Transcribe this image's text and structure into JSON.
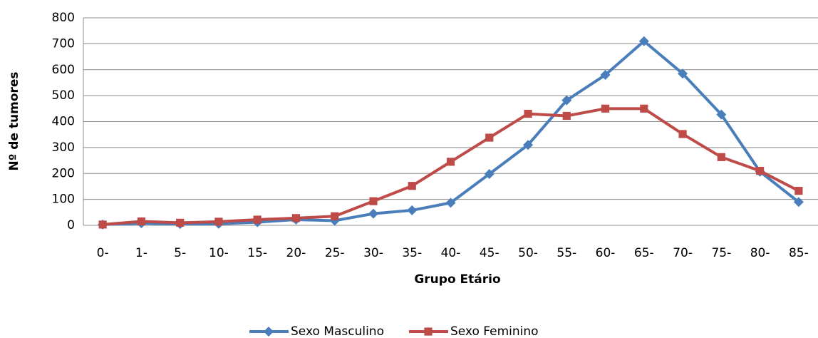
{
  "chart_data": {
    "type": "line",
    "x_label": "Grupo Etário",
    "y_label": "Nº de tumores",
    "categories": [
      "0-",
      "1-",
      "5-",
      "10-",
      "15-",
      "20-",
      "25-",
      "30-",
      "35-",
      "40-",
      "45-",
      "50-",
      "55-",
      "60-",
      "65-",
      "70-",
      "75-",
      "80-",
      "85-"
    ],
    "series": [
      {
        "name": "Sexo Masculino",
        "color": "#4a7ebb",
        "marker": "diamond",
        "values": [
          3,
          8,
          5,
          6,
          12,
          22,
          18,
          45,
          58,
          87,
          198,
          310,
          482,
          580,
          710,
          585,
          427,
          207,
          90
        ]
      },
      {
        "name": "Sexo Feminino",
        "color": "#be4b48",
        "marker": "square",
        "values": [
          3,
          15,
          10,
          14,
          22,
          28,
          35,
          93,
          152,
          245,
          338,
          430,
          422,
          450,
          450,
          352,
          263,
          210,
          133
        ]
      }
    ],
    "ylim": [
      0,
      800
    ],
    "yticks": [
      0,
      100,
      200,
      300,
      400,
      500,
      600,
      700,
      800
    ],
    "grid": true,
    "legend": "bottom"
  }
}
